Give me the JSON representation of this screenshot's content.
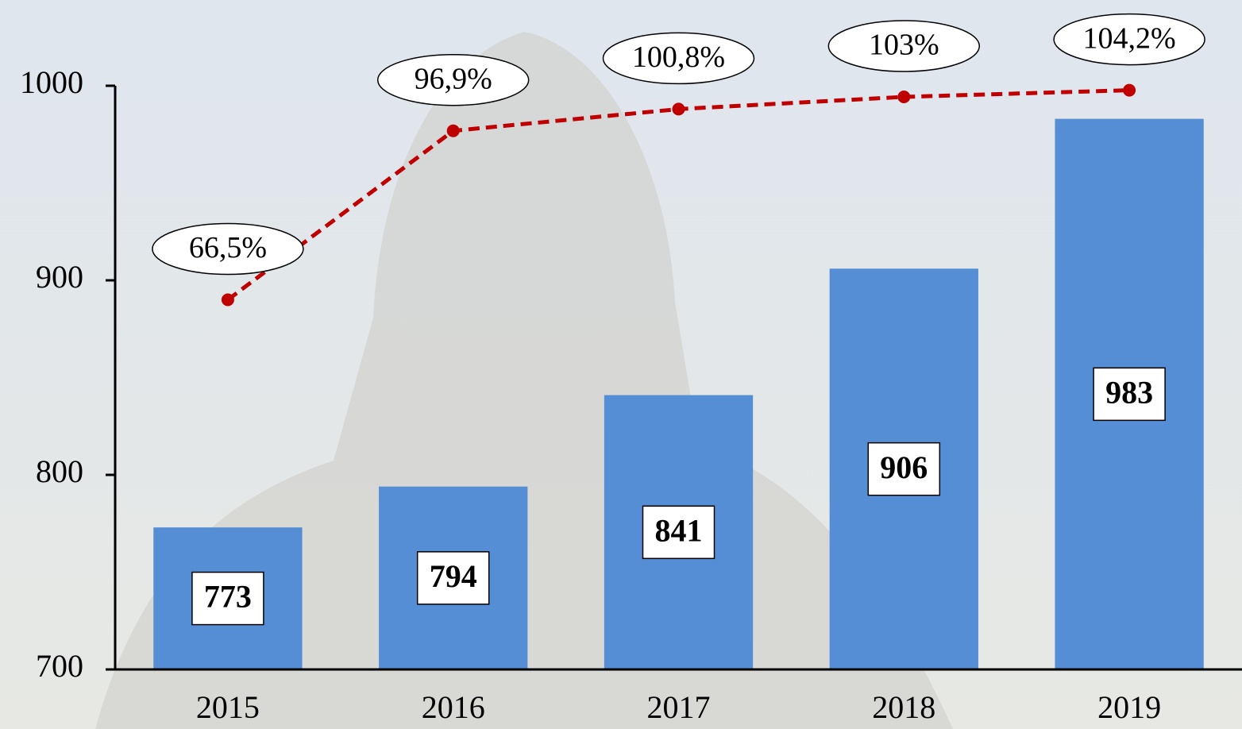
{
  "chart_data": {
    "type": "bar",
    "categories": [
      "2015",
      "2016",
      "2017",
      "2018",
      "2019"
    ],
    "ylim": [
      700,
      1000
    ],
    "yticks": [
      700,
      800,
      900,
      1000
    ],
    "y2lim": [
      0,
      105
    ],
    "series": [
      {
        "type": "bar",
        "color": "#558ed5",
        "values": [
          773,
          794,
          841,
          906,
          983
        ]
      },
      {
        "type": "line",
        "axis": "y2",
        "color": "#c00000",
        "values": [
          66.5,
          96.9,
          100.8,
          103,
          104.2
        ],
        "value_labels": [
          "66,5%",
          "96,9%",
          "100,8%",
          "103%",
          "104,2%"
        ]
      }
    ]
  }
}
